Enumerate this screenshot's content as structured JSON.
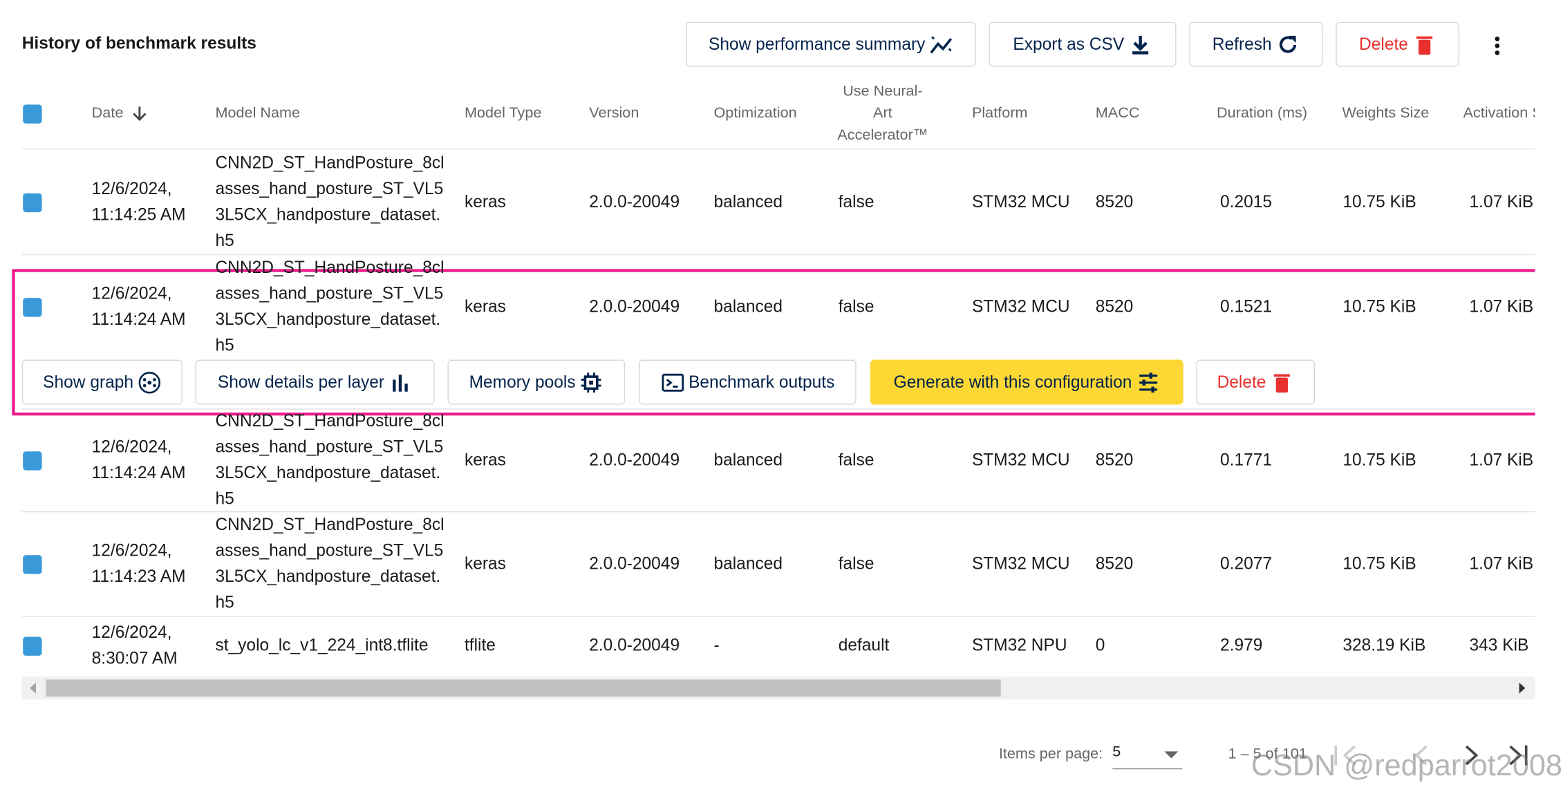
{
  "header": {
    "title": "History of benchmark results",
    "buttons": [
      "Show performance summary",
      "Export as CSV",
      "Refresh",
      "Delete"
    ]
  },
  "table": {
    "columns": [
      "Date",
      "Model Name",
      "Model Type",
      "Version",
      "Optimization",
      "Use Neural-Art Accelerator™",
      "Platform",
      "MACC",
      "Duration (ms)",
      "Weights Size",
      "Activation Size"
    ],
    "rows": [
      [
        "12/6/2024, 11:14:25 AM",
        "CNN2D_ST_HandPosture_8classes_hand_posture_ST_VL53L5CX_handposture_dataset.h5",
        "keras",
        "2.0.0-20049",
        "balanced",
        "false",
        "STM32 MCU",
        "8520",
        "0.2015",
        "10.75 KiB",
        "1.07 KiB"
      ],
      [
        "12/6/2024, 11:14:24 AM",
        "CNN2D_ST_HandPosture_8classes_hand_posture_ST_VL53L5CX_handposture_dataset.h5",
        "keras",
        "2.0.0-20049",
        "balanced",
        "false",
        "STM32 MCU",
        "8520",
        "0.1521",
        "10.75 KiB",
        "1.07 KiB"
      ],
      [
        "12/6/2024, 11:14:24 AM",
        "CNN2D_ST_HandPosture_8classes_hand_posture_ST_VL53L5CX_handposture_dataset.h5",
        "keras",
        "2.0.0-20049",
        "balanced",
        "false",
        "STM32 MCU",
        "8520",
        "0.1771",
        "10.75 KiB",
        "1.07 KiB"
      ],
      [
        "12/6/2024, 11:14:23 AM",
        "CNN2D_ST_HandPosture_8classes_hand_posture_ST_VL53L5CX_handposture_dataset.h5",
        "keras",
        "2.0.0-20049",
        "balanced",
        "false",
        "STM32 MCU",
        "8520",
        "0.2077",
        "10.75 KiB",
        "1.07 KiB"
      ],
      [
        "12/6/2024, 8:30:07 AM",
        "st_yolo_lc_v1_224_int8.tflite",
        "tflite",
        "2.0.0-20049",
        "-",
        "default",
        "STM32 NPU",
        "0",
        "2.979",
        "328.19 KiB",
        "343 KiB"
      ]
    ]
  },
  "row_actions": [
    "Show graph",
    "Show details per layer",
    "Memory pools",
    "Benchmark outputs",
    "Generate with this configuration",
    "Delete"
  ],
  "pagination": {
    "items_per_page_label": "Items per page:",
    "items_per_page": "5",
    "range": "1 – 5 of 101"
  },
  "watermark": "CSDN @redparrot2008"
}
